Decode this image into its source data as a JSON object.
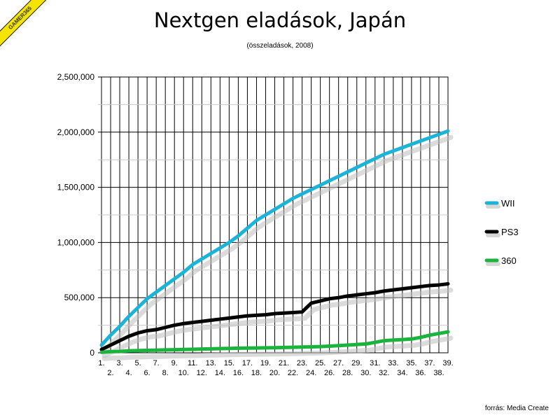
{
  "badge": "GAMER365",
  "source": "forrás: Media Create",
  "chart_data": {
    "type": "line",
    "title": "Nextgen eladások, Japán",
    "subtitle": "(összeladások, 2008)",
    "ylim": [
      0,
      2500000
    ],
    "y_ticks": [
      "0",
      "500,000",
      "1,000,000",
      "1,500,000",
      "2,000,000",
      "2,500,000"
    ],
    "y_tick_values": [
      0,
      500000,
      1000000,
      1500000,
      2000000,
      2500000
    ],
    "x": [
      "1.",
      "2.",
      "3.",
      "4.",
      "5.",
      "6.",
      "7.",
      "8.",
      "9.",
      "10.",
      "11.",
      "12.",
      "13.",
      "14.",
      "15.",
      "16.",
      "17.",
      "18.",
      "19.",
      "20.",
      "21.",
      "22.",
      "23.",
      "24.",
      "25.",
      "26.",
      "27.",
      "28.",
      "29.",
      "30.",
      "31.",
      "32.",
      "33.",
      "34.",
      "35.",
      "36.",
      "37.",
      "38.",
      "39."
    ],
    "grid": true,
    "legend_position": "right",
    "series": [
      {
        "name": "WII",
        "color": "#1ab4d8",
        "values": [
          70000,
          160000,
          240000,
          330000,
          410000,
          490000,
          550000,
          610000,
          670000,
          730000,
          800000,
          850000,
          900000,
          950000,
          1000000,
          1060000,
          1130000,
          1200000,
          1250000,
          1300000,
          1350000,
          1400000,
          1440000,
          1480000,
          1520000,
          1560000,
          1600000,
          1640000,
          1680000,
          1720000,
          1760000,
          1800000,
          1830000,
          1860000,
          1890000,
          1920000,
          1950000,
          1980000,
          2010000
        ]
      },
      {
        "name": "PS3",
        "color": "#000000",
        "values": [
          30000,
          70000,
          110000,
          150000,
          180000,
          200000,
          210000,
          230000,
          250000,
          265000,
          275000,
          285000,
          295000,
          305000,
          315000,
          325000,
          335000,
          340000,
          345000,
          355000,
          360000,
          365000,
          370000,
          450000,
          470000,
          490000,
          500000,
          515000,
          525000,
          535000,
          545000,
          560000,
          570000,
          580000,
          590000,
          600000,
          610000,
          615000,
          625000
        ]
      },
      {
        "name": "360",
        "color": "#1ab43c",
        "values": [
          5000,
          10000,
          12000,
          18000,
          20000,
          22000,
          24000,
          26000,
          28000,
          30000,
          32000,
          34000,
          36000,
          38000,
          40000,
          42000,
          43000,
          44000,
          45000,
          46000,
          48000,
          50000,
          52000,
          54000,
          56000,
          60000,
          65000,
          70000,
          75000,
          80000,
          95000,
          110000,
          115000,
          120000,
          125000,
          140000,
          160000,
          175000,
          190000
        ]
      }
    ]
  }
}
